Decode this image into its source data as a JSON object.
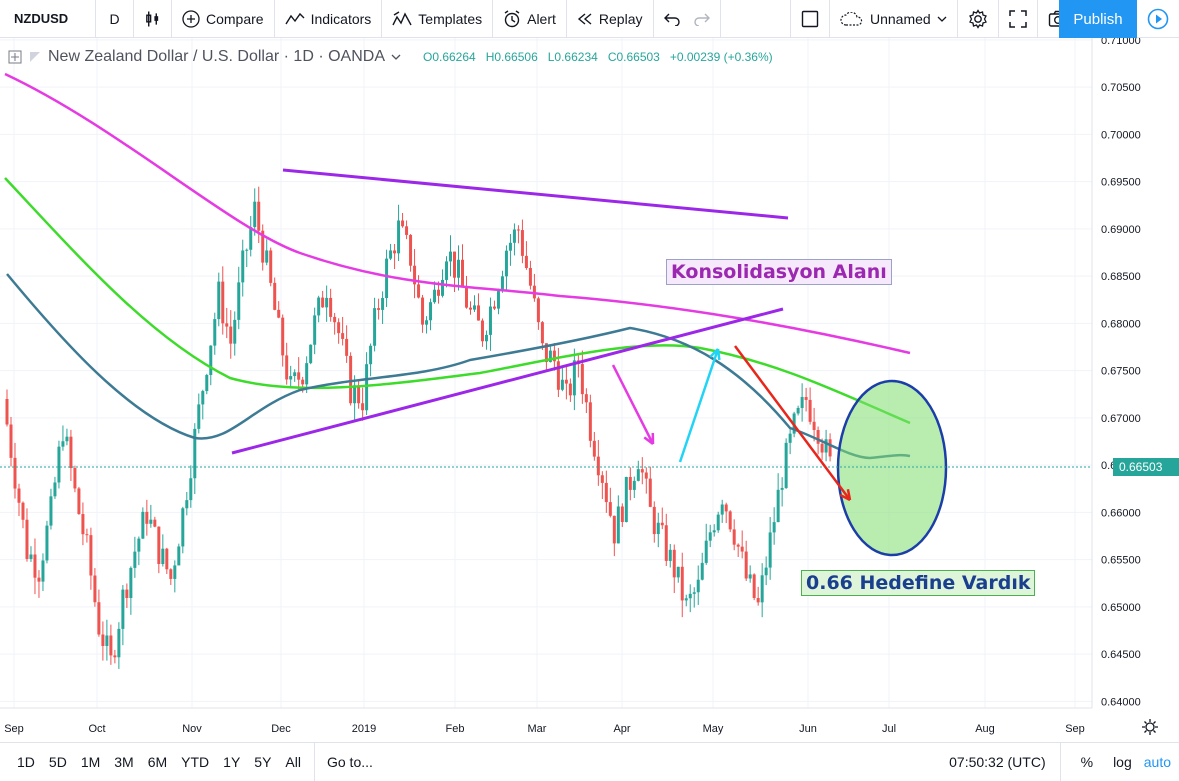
{
  "toolbar": {
    "symbol": "NZDUSD",
    "interval": "D",
    "compare": "Compare",
    "indicators": "Indicators",
    "templates": "Templates",
    "alert": "Alert",
    "replay": "Replay",
    "layout_name": "Unnamed",
    "publish": "Publish"
  },
  "legend": {
    "title": "New Zealand Dollar / U.S. Dollar · 1D · OANDA",
    "open": "O0.66264",
    "high": "H0.66506",
    "low": "L0.66234",
    "close": "C0.66503",
    "change": "+0.00239 (+0.36%)"
  },
  "annotations": {
    "consolidation": "Konsolidasyon Alanı",
    "target": "0.66 Hedefine Vardık"
  },
  "current_price": "0.66503",
  "colors": {
    "up": "#26a69a",
    "down": "#ef5350",
    "ma_pink": "#e53be3",
    "ma_green": "#3ddb2a",
    "ma_blue": "#3d7a94",
    "trend_purple": "#9c27e8",
    "accent": "#2196f3"
  },
  "bottom": {
    "ranges": [
      "1D",
      "5D",
      "1M",
      "3M",
      "6M",
      "YTD",
      "1Y",
      "5Y",
      "All"
    ],
    "goto": "Go to...",
    "time": "07:50:32 (UTC)",
    "percent": "%",
    "log": "log",
    "auto": "auto"
  },
  "chart_data": {
    "type": "candlestick",
    "y_ticks": [
      "0.71000",
      "0.70500",
      "0.70000",
      "0.69500",
      "0.69000",
      "0.68500",
      "0.68000",
      "0.67500",
      "0.67000",
      "0.66500",
      "0.66000",
      "0.65500",
      "0.65000",
      "0.64500",
      "0.64000"
    ],
    "x_ticks": [
      "Sep",
      "Oct",
      "Nov",
      "Dec",
      "2019",
      "Feb",
      "Mar",
      "Apr",
      "May",
      "Jun",
      "Jul",
      "Aug",
      "Sep"
    ],
    "ylim": [
      0.6393,
      0.7102
    ],
    "close_path": [
      [
        0.672,
        0.664
      ],
      [
        0.664,
        0.656
      ],
      [
        0.656,
        0.654
      ],
      [
        0.654,
        0.66
      ],
      [
        0.66,
        0.669
      ],
      [
        0.669,
        0.662
      ],
      [
        0.662,
        0.656
      ],
      [
        0.656,
        0.648
      ],
      [
        0.648,
        0.644
      ],
      [
        0.644,
        0.651
      ],
      [
        0.651,
        0.656
      ],
      [
        0.656,
        0.66
      ],
      [
        0.66,
        0.656
      ],
      [
        0.656,
        0.653
      ],
      [
        0.653,
        0.66
      ],
      [
        0.66,
        0.668
      ],
      [
        0.668,
        0.676
      ],
      [
        0.676,
        0.683
      ],
      [
        0.683,
        0.678
      ],
      [
        0.678,
        0.686
      ],
      [
        0.686,
        0.692
      ],
      [
        0.692,
        0.686
      ],
      [
        0.686,
        0.679
      ],
      [
        0.679,
        0.673
      ],
      [
        0.673,
        0.675
      ],
      [
        0.675,
        0.68
      ],
      [
        0.68,
        0.684
      ],
      [
        0.684,
        0.679
      ],
      [
        0.679,
        0.673
      ],
      [
        0.673,
        0.672
      ],
      [
        0.672,
        0.68
      ],
      [
        0.68,
        0.686
      ],
      [
        0.686,
        0.69
      ],
      [
        0.69,
        0.687
      ],
      [
        0.687,
        0.68
      ],
      [
        0.68,
        0.683
      ],
      [
        0.683,
        0.688
      ],
      [
        0.688,
        0.685
      ],
      [
        0.685,
        0.681
      ],
      [
        0.681,
        0.679
      ],
      [
        0.679,
        0.683
      ],
      [
        0.683,
        0.688
      ],
      [
        0.688,
        0.69
      ],
      [
        0.69,
        0.684
      ],
      [
        0.684,
        0.677
      ],
      [
        0.677,
        0.676
      ],
      [
        0.676,
        0.672
      ],
      [
        0.672,
        0.676
      ],
      [
        0.676,
        0.669
      ],
      [
        0.669,
        0.664
      ],
      [
        0.664,
        0.658
      ],
      [
        0.658,
        0.662
      ],
      [
        0.662,
        0.666
      ],
      [
        0.666,
        0.66
      ],
      [
        0.66,
        0.657
      ],
      [
        0.657,
        0.654
      ],
      [
        0.654,
        0.65
      ],
      [
        0.65,
        0.652
      ],
      [
        0.652,
        0.658
      ],
      [
        0.658,
        0.662
      ],
      [
        0.662,
        0.658
      ],
      [
        0.658,
        0.653
      ],
      [
        0.653,
        0.65
      ],
      [
        0.65,
        0.657
      ],
      [
        0.657,
        0.664
      ],
      [
        0.664,
        0.669
      ],
      [
        0.669,
        0.672
      ],
      [
        0.672,
        0.669
      ],
      [
        0.669,
        0.665
      ]
    ]
  }
}
